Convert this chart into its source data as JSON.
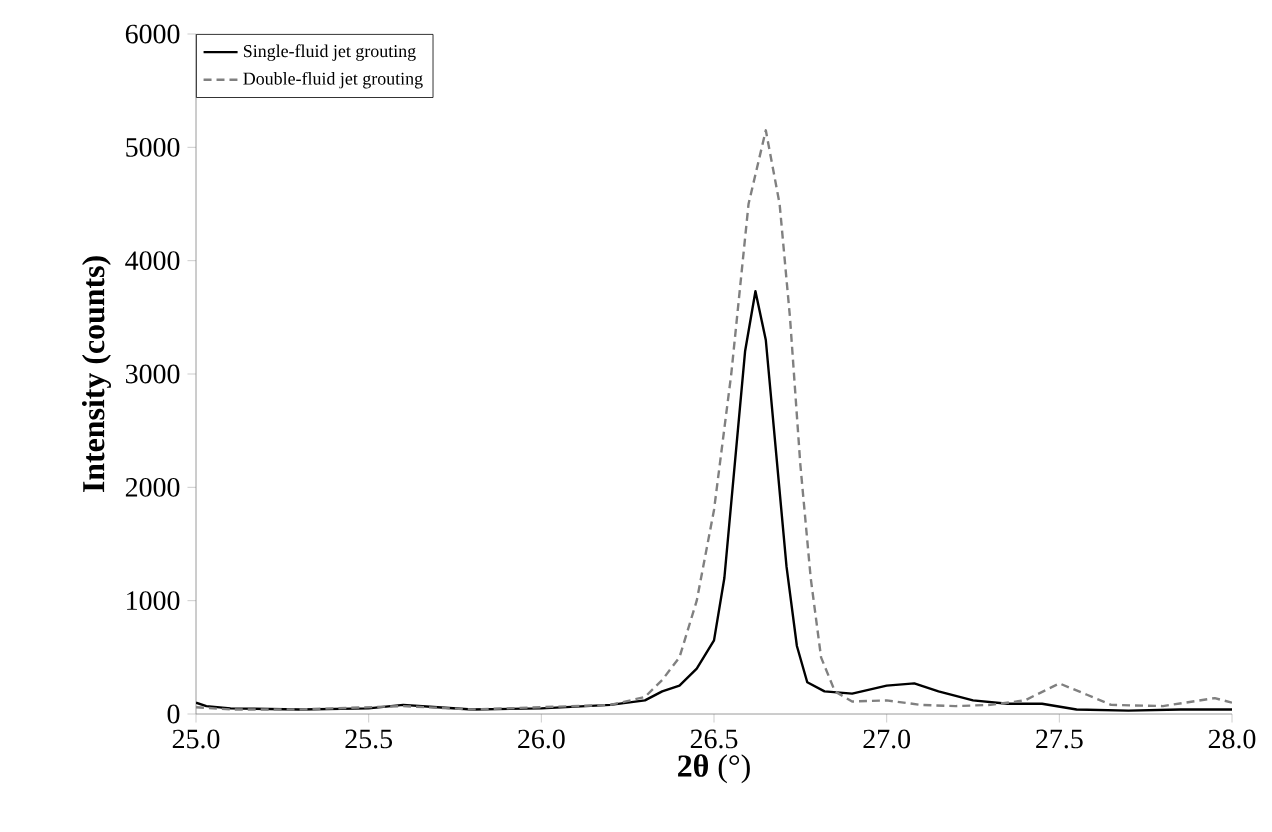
{
  "chart_data": {
    "type": "line",
    "xlabel": "**2θ** (°)",
    "ylabel": "**Intensity (counts)**",
    "xlim": [
      25,
      28
    ],
    "ylim": [
      0,
      6000
    ],
    "xticks": [
      {
        "value": 25,
        "label": "25.0"
      },
      {
        "value": 25.5,
        "label": "25.5"
      },
      {
        "value": 26,
        "label": "26.0"
      },
      {
        "value": 26.5,
        "label": "26.5"
      },
      {
        "value": 27,
        "label": "27.0"
      },
      {
        "value": 27.5,
        "label": "27.5"
      },
      {
        "value": 28,
        "label": "28.0"
      }
    ],
    "yticks": [
      0,
      1000,
      2000,
      3000,
      4000,
      5000,
      6000
    ],
    "grid": false,
    "legend": "top left",
    "marker": "none",
    "series": [
      {
        "name": "Single-fluid jet grouting",
        "color": "#000000",
        "line_style": "solid",
        "x": [
          25.0,
          25.03,
          25.1,
          25.3,
          25.5,
          25.6,
          25.7,
          25.8,
          26.0,
          26.2,
          26.3,
          26.35,
          26.4,
          26.45,
          26.5,
          26.53,
          26.56,
          26.59,
          26.62,
          26.65,
          26.68,
          26.71,
          26.74,
          26.77,
          26.82,
          26.9,
          27.0,
          27.08,
          27.15,
          27.25,
          27.35,
          27.45,
          27.55,
          27.7,
          27.85,
          28.0
        ],
        "values": [
          100,
          70,
          50,
          40,
          50,
          80,
          60,
          40,
          50,
          80,
          120,
          200,
          250,
          400,
          650,
          1200,
          2200,
          3200,
          3730,
          3300,
          2300,
          1300,
          600,
          280,
          200,
          180,
          250,
          270,
          200,
          120,
          90,
          90,
          40,
          30,
          40,
          40
        ]
      },
      {
        "name": "Double-fluid jet grouting",
        "color": "#808080",
        "line_style": "dashed",
        "x": [
          25.0,
          25.1,
          25.3,
          25.6,
          25.8,
          26.0,
          26.2,
          26.3,
          26.35,
          26.4,
          26.45,
          26.5,
          26.55,
          26.6,
          26.65,
          26.69,
          26.72,
          26.75,
          26.78,
          26.81,
          26.85,
          26.9,
          27.0,
          27.1,
          27.2,
          27.3,
          27.4,
          27.5,
          27.58,
          27.65,
          27.8,
          27.95,
          28.0
        ],
        "values": [
          60,
          40,
          40,
          70,
          40,
          60,
          80,
          150,
          300,
          500,
          1000,
          1800,
          3000,
          4500,
          5150,
          4500,
          3500,
          2200,
          1200,
          500,
          200,
          110,
          120,
          80,
          70,
          80,
          120,
          270,
          170,
          80,
          70,
          140,
          100
        ]
      }
    ]
  }
}
